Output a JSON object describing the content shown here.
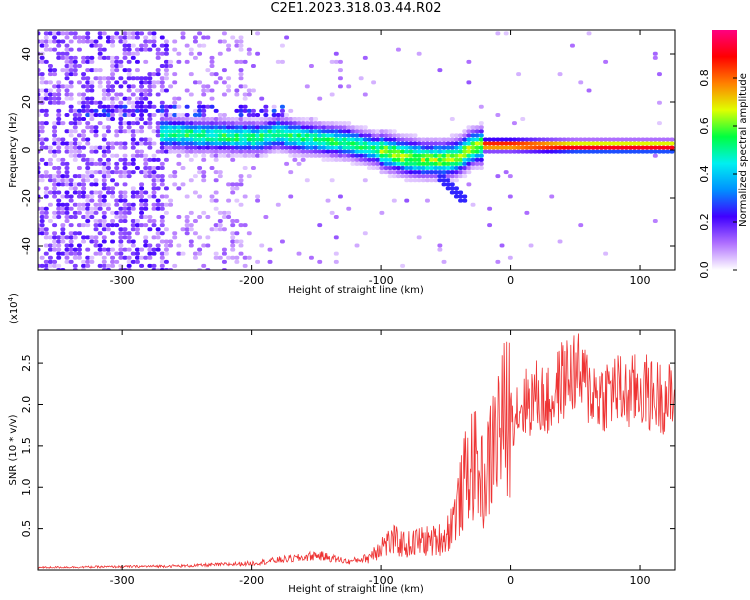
{
  "title": "C2E1.2023.318.03.44.R02",
  "chart_data": [
    {
      "type": "heatmap",
      "xlabel": "Height of straight line (km)",
      "ylabel": "Frequency (Hz)",
      "xlim": [
        -365,
        127
      ],
      "ylim": [
        -50,
        50
      ],
      "x_ticks": [
        -300,
        -200,
        -100,
        0,
        100
      ],
      "y_ticks": [
        -40,
        -20,
        0,
        20,
        40
      ],
      "x_tick_labels": [
        "-300",
        "-200",
        "-100",
        "0",
        "100"
      ],
      "y_tick_labels": [
        "-40",
        "-20",
        "0",
        "20",
        "40"
      ],
      "colorbar": {
        "label": "Normalized spectral amplitude",
        "range": [
          0,
          1
        ],
        "ticks": [
          0.0,
          0.2,
          0.4,
          0.6,
          0.8
        ],
        "tick_labels": [
          "0.0",
          "0.2",
          "0.4",
          "0.6",
          "0.8"
        ],
        "colormap": [
          "#ffffff",
          "#b070ff",
          "#4000ff",
          "#0090ff",
          "#00f0f0",
          "#00ff40",
          "#e0ff00",
          "#ff8000",
          "#ff0000",
          "#ff0080"
        ]
      },
      "ridge": {
        "x": [
          -265,
          -240,
          -215,
          -195,
          -180,
          -160,
          -140,
          -125,
          -110,
          -95,
          -80,
          -65,
          -50,
          -40,
          -30,
          -20,
          0,
          50,
          100,
          127
        ],
        "freq": [
          7,
          6,
          5.5,
          5,
          7,
          5,
          4,
          3,
          1,
          -1,
          -3,
          -4,
          -4,
          -3,
          1,
          2,
          2,
          1.5,
          1.5,
          1.5
        ]
      },
      "secondary_band": {
        "x_range": [
          -340,
          -175
        ],
        "freq": 17
      }
    },
    {
      "type": "line",
      "xlabel": "Height of straight line (km)",
      "ylabel": "SNR (10 * v/v)",
      "y_multiplier": "(x10",
      "y_multiplier_exp": "4",
      "y_multiplier_close": ")",
      "xlim": [
        -365,
        127
      ],
      "ylim": [
        0,
        29000
      ],
      "x_ticks": [
        -300,
        -200,
        -100,
        0,
        100
      ],
      "y_ticks": [
        5000,
        10000,
        15000,
        20000,
        25000
      ],
      "x_tick_labels": [
        "-300",
        "-200",
        "-100",
        "0",
        "100"
      ],
      "y_tick_labels": [
        "0.5",
        "1.0",
        "1.5",
        "2.0",
        "2.5"
      ],
      "color": "#ee3333",
      "series": [
        {
          "x": [
            -365,
            -300,
            -250,
            -200,
            -180,
            -160,
            -150,
            -140,
            -125,
            -110,
            -100,
            -90,
            -80,
            -70,
            -60,
            -50,
            -45,
            -40,
            -35,
            -30,
            -25,
            -20,
            -15,
            -10,
            -5,
            0,
            10,
            20,
            30,
            40,
            50,
            60,
            70,
            80,
            90,
            100,
            110,
            120,
            127
          ],
          "y": [
            300,
            400,
            500,
            800,
            1200,
            1500,
            1800,
            1500,
            1000,
            1500,
            3000,
            3500,
            3000,
            3500,
            3500,
            4000,
            6000,
            8000,
            11000,
            13000,
            12000,
            10000,
            14000,
            17000,
            18000,
            19000,
            20000,
            21000,
            20000,
            23000,
            24000,
            22000,
            21000,
            22000,
            21000,
            22000,
            21000,
            21000,
            20000
          ]
        }
      ]
    }
  ]
}
